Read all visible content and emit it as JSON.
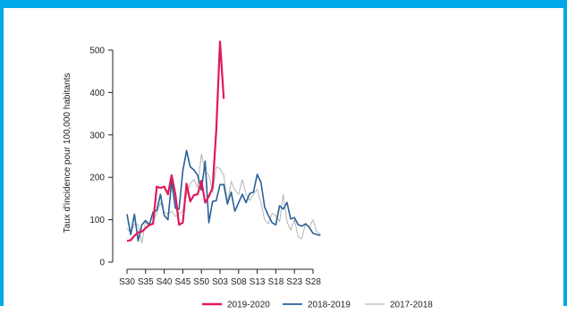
{
  "chart_data": {
    "type": "line",
    "ylabel": "Taux d'incidence pour 100,000 habitants",
    "xlabel": "",
    "ylim": [
      0,
      500
    ],
    "yticks": [
      0,
      100,
      200,
      300,
      400,
      500
    ],
    "xtick_labels": [
      "S30",
      "S35",
      "S40",
      "S45",
      "S50",
      "S03",
      "S08",
      "S13",
      "S18",
      "S23",
      "S28"
    ],
    "x_count": 53,
    "legend_position": "bottom",
    "series": [
      {
        "name": "2019-2020",
        "color": "#e0195a",
        "values": [
          50,
          52,
          62,
          70,
          72,
          80,
          88,
          90,
          178,
          175,
          178,
          160,
          205,
          160,
          88,
          93,
          185,
          143,
          158,
          160,
          192,
          140,
          155,
          175,
          310,
          520,
          385
        ]
      },
      {
        "name": "2018-2019",
        "color": "#2a6098",
        "values": [
          113,
          65,
          113,
          50,
          88,
          98,
          88,
          118,
          122,
          160,
          110,
          100,
          190,
          127,
          125,
          215,
          263,
          225,
          217,
          205,
          170,
          238,
          93,
          143,
          145,
          183,
          183,
          137,
          165,
          120,
          140,
          160,
          140,
          162,
          165,
          207,
          188,
          130,
          110,
          93,
          88,
          133,
          125,
          141,
          102,
          105,
          88,
          85,
          90,
          82,
          68,
          65,
          63
        ]
      },
      {
        "name": "2017-2018",
        "color": "#b5b5b5",
        "values": [
          80,
          68,
          90,
          88,
          45,
          95,
          84,
          95,
          115,
          140,
          118,
          113,
          120,
          108,
          115,
          120,
          160,
          185,
          195,
          175,
          255,
          215,
          205,
          165,
          225,
          220,
          205,
          140,
          190,
          170,
          160,
          195,
          160,
          145,
          160,
          172,
          140,
          100,
          90,
          115,
          110,
          95,
          160,
          95,
          75,
          100,
          60,
          55,
          92,
          82,
          100,
          72,
          65
        ]
      }
    ]
  }
}
